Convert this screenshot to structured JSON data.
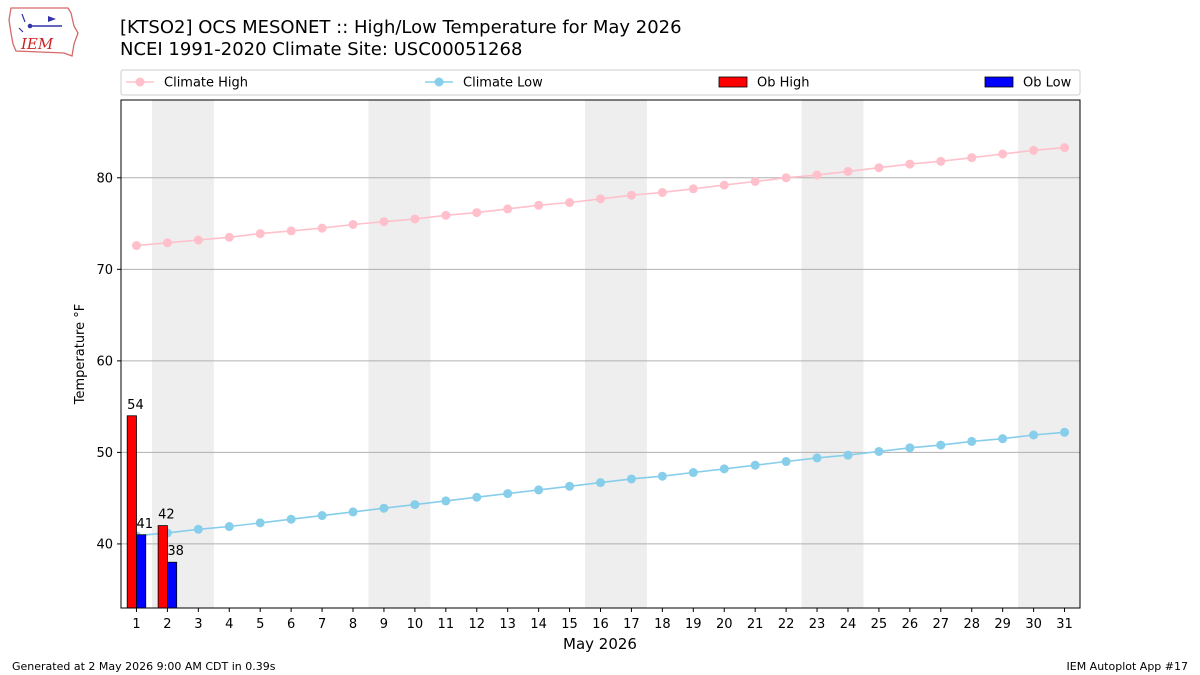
{
  "header": {
    "logo_text": "IEM",
    "title_line1": "[KTSO2] OCS MESONET :: High/Low Temperature for May 2026",
    "title_line2": "NCEI 1991-2020 Climate Site: USC00051268"
  },
  "footer": {
    "generated": "Generated at 2 May 2026 9:00 AM CDT in 0.39s",
    "app": "IEM Autoplot App #17"
  },
  "colors": {
    "climate_high": "#ffc0cb",
    "climate_low": "#87ceeb",
    "ob_high": "#ff0000",
    "ob_low": "#0000ff",
    "weekend_band": "#eeeeee",
    "grid": "#b0b0b0"
  },
  "chart_data": {
    "type": "bar",
    "xlabel": "May 2026",
    "ylabel": "Temperature °F",
    "xlim": [
      0.5,
      31.5
    ],
    "ylim": [
      33,
      88.5
    ],
    "y_ticks": [
      40,
      50,
      60,
      70,
      80
    ],
    "x_ticks": [
      1,
      2,
      3,
      4,
      5,
      6,
      7,
      8,
      9,
      10,
      11,
      12,
      13,
      14,
      15,
      16,
      17,
      18,
      19,
      20,
      21,
      22,
      23,
      24,
      25,
      26,
      27,
      28,
      29,
      30,
      31
    ],
    "grid": "y",
    "legend_position": "top",
    "weekend_bands": [
      [
        2,
        3
      ],
      [
        9,
        10
      ],
      [
        16,
        17
      ],
      [
        23,
        24
      ],
      [
        30,
        31
      ]
    ],
    "series": [
      {
        "name": "Climate High",
        "kind": "line",
        "color": "#ffc0cb",
        "x": [
          1,
          2,
          3,
          4,
          5,
          6,
          7,
          8,
          9,
          10,
          11,
          12,
          13,
          14,
          15,
          16,
          17,
          18,
          19,
          20,
          21,
          22,
          23,
          24,
          25,
          26,
          27,
          28,
          29,
          30,
          31
        ],
        "values": [
          72.6,
          72.9,
          73.2,
          73.5,
          73.9,
          74.2,
          74.5,
          74.9,
          75.2,
          75.5,
          75.9,
          76.2,
          76.6,
          77.0,
          77.3,
          77.7,
          78.1,
          78.4,
          78.8,
          79.2,
          79.6,
          80.0,
          80.3,
          80.7,
          81.1,
          81.5,
          81.8,
          82.2,
          82.6,
          83.0,
          83.3
        ]
      },
      {
        "name": "Climate Low",
        "kind": "line",
        "color": "#87ceeb",
        "x": [
          1,
          2,
          3,
          4,
          5,
          6,
          7,
          8,
          9,
          10,
          11,
          12,
          13,
          14,
          15,
          16,
          17,
          18,
          19,
          20,
          21,
          22,
          23,
          24,
          25,
          26,
          27,
          28,
          29,
          30,
          31
        ],
        "values": [
          40.9,
          41.2,
          41.6,
          41.9,
          42.3,
          42.7,
          43.1,
          43.5,
          43.9,
          44.3,
          44.7,
          45.1,
          45.5,
          45.9,
          46.3,
          46.7,
          47.1,
          47.4,
          47.8,
          48.2,
          48.6,
          49.0,
          49.4,
          49.7,
          50.1,
          50.5,
          50.8,
          51.2,
          51.5,
          51.9,
          52.2
        ]
      },
      {
        "name": "Ob High",
        "kind": "bar",
        "color": "#ff0000",
        "x": [
          1,
          2
        ],
        "values": [
          54,
          42
        ],
        "labels": [
          "54",
          "42"
        ]
      },
      {
        "name": "Ob Low",
        "kind": "bar",
        "color": "#0000ff",
        "x": [
          1,
          2
        ],
        "values": [
          41,
          38
        ],
        "labels": [
          "41",
          "38"
        ]
      }
    ]
  }
}
